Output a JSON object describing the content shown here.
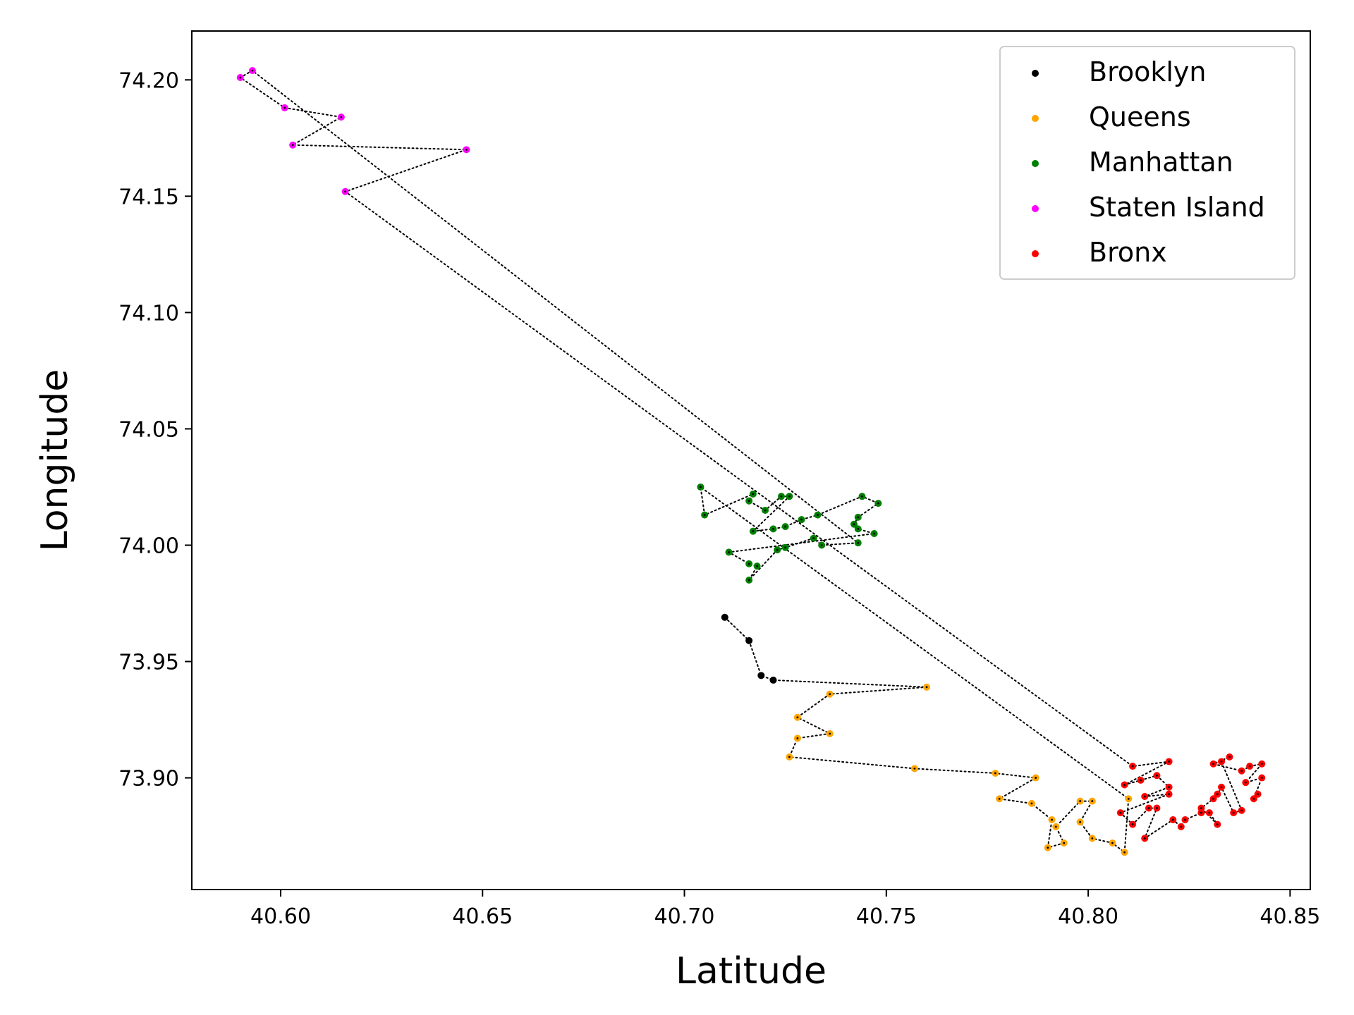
{
  "chart_data": {
    "type": "scatter",
    "xlabel": "Latitude",
    "ylabel": "Longitude",
    "xlim": [
      40.578,
      40.855
    ],
    "ylim": [
      73.852,
      74.221
    ],
    "xticks": [
      40.6,
      40.65,
      40.7,
      40.75,
      40.8,
      40.85
    ],
    "yticks": [
      73.9,
      73.95,
      74.0,
      74.05,
      74.1,
      74.15,
      74.2
    ],
    "xtick_labels": [
      "40.60",
      "40.65",
      "40.70",
      "40.75",
      "40.80",
      "40.85"
    ],
    "ytick_labels": [
      "73.90",
      "73.95",
      "74.00",
      "74.05",
      "74.10",
      "74.15",
      "74.20"
    ],
    "legend_position": "upper right",
    "grid": false,
    "route_line": {
      "style": "dotted",
      "color": "#000000"
    },
    "series": [
      {
        "name": "Brooklyn",
        "color": "#000000",
        "points": [
          [
            40.71,
            73.969
          ],
          [
            40.716,
            73.959
          ],
          [
            40.719,
            73.944
          ],
          [
            40.722,
            73.942
          ]
        ]
      },
      {
        "name": "Queens",
        "color": "#ffa500",
        "points": [
          [
            40.76,
            73.939
          ],
          [
            40.736,
            73.936
          ],
          [
            40.728,
            73.926
          ],
          [
            40.736,
            73.919
          ],
          [
            40.728,
            73.917
          ],
          [
            40.726,
            73.909
          ],
          [
            40.757,
            73.904
          ],
          [
            40.777,
            73.902
          ],
          [
            40.787,
            73.9
          ],
          [
            40.778,
            73.891
          ],
          [
            40.786,
            73.889
          ],
          [
            40.791,
            73.882
          ],
          [
            40.79,
            73.87
          ],
          [
            40.794,
            73.872
          ],
          [
            40.792,
            73.879
          ],
          [
            40.798,
            73.89
          ],
          [
            40.801,
            73.89
          ],
          [
            40.798,
            73.881
          ],
          [
            40.801,
            73.874
          ],
          [
            40.806,
            73.872
          ],
          [
            40.809,
            73.868
          ],
          [
            40.81,
            73.891
          ]
        ]
      },
      {
        "name": "Manhattan",
        "color": "#008000",
        "points": [
          [
            40.704,
            74.025
          ],
          [
            40.705,
            74.013
          ],
          [
            40.717,
            74.022
          ],
          [
            40.716,
            74.019
          ],
          [
            40.72,
            74.015
          ],
          [
            40.724,
            74.021
          ],
          [
            40.726,
            74.021
          ],
          [
            40.717,
            74.006
          ],
          [
            40.722,
            74.007
          ],
          [
            40.725,
            74.008
          ],
          [
            40.729,
            74.011
          ],
          [
            40.733,
            74.013
          ],
          [
            40.744,
            74.021
          ],
          [
            40.748,
            74.018
          ],
          [
            40.743,
            74.012
          ],
          [
            40.742,
            74.009
          ],
          [
            40.743,
            74.007
          ],
          [
            40.747,
            74.005
          ],
          [
            40.711,
            73.997
          ],
          [
            40.716,
            73.992
          ],
          [
            40.718,
            73.991
          ],
          [
            40.716,
            73.985
          ],
          [
            40.723,
            73.998
          ],
          [
            40.725,
            73.999
          ],
          [
            40.732,
            74.003
          ],
          [
            40.734,
            74.0
          ],
          [
            40.743,
            74.001
          ]
        ]
      },
      {
        "name": "Staten Island",
        "color": "#ff00ff",
        "points": [
          [
            40.593,
            74.204
          ],
          [
            40.59,
            74.201
          ],
          [
            40.601,
            74.188
          ],
          [
            40.615,
            74.184
          ],
          [
            40.603,
            74.172
          ],
          [
            40.646,
            74.17
          ],
          [
            40.616,
            74.152
          ]
        ]
      },
      {
        "name": "Bronx",
        "color": "#ff0000",
        "points": [
          [
            40.811,
            73.905
          ],
          [
            40.82,
            73.907
          ],
          [
            40.809,
            73.897
          ],
          [
            40.813,
            73.899
          ],
          [
            40.817,
            73.901
          ],
          [
            40.82,
            73.896
          ],
          [
            40.814,
            73.892
          ],
          [
            40.82,
            73.893
          ],
          [
            40.808,
            73.885
          ],
          [
            40.811,
            73.88
          ],
          [
            40.815,
            73.887
          ],
          [
            40.817,
            73.887
          ],
          [
            40.814,
            73.874
          ],
          [
            40.821,
            73.882
          ],
          [
            40.823,
            73.879
          ],
          [
            40.824,
            73.882
          ],
          [
            40.828,
            73.885
          ],
          [
            40.83,
            73.885
          ],
          [
            40.832,
            73.88
          ],
          [
            40.828,
            73.887
          ],
          [
            40.831,
            73.891
          ],
          [
            40.832,
            73.893
          ],
          [
            40.833,
            73.896
          ],
          [
            40.836,
            73.885
          ],
          [
            40.838,
            73.886
          ],
          [
            40.833,
            73.907
          ],
          [
            40.835,
            73.909
          ],
          [
            40.831,
            73.906
          ],
          [
            40.838,
            73.903
          ],
          [
            40.84,
            73.905
          ],
          [
            40.843,
            73.906
          ],
          [
            40.839,
            73.898
          ],
          [
            40.843,
            73.9
          ],
          [
            40.841,
            73.891
          ],
          [
            40.842,
            73.893
          ]
        ]
      }
    ]
  }
}
